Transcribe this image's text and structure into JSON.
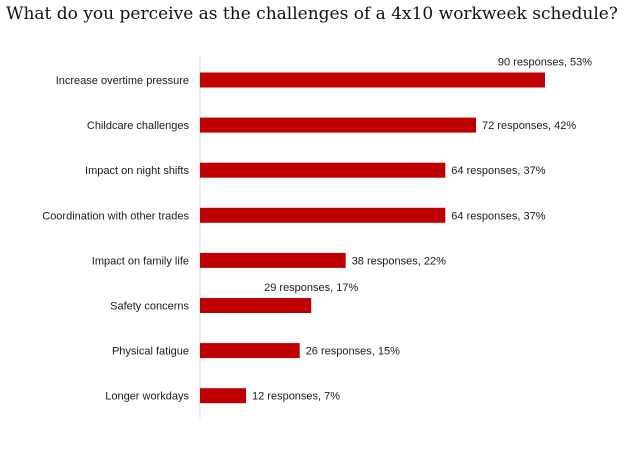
{
  "chart_data": {
    "type": "bar",
    "orientation": "horizontal",
    "title": "What do you perceive as the challenges of a 4x10 workweek schedule?",
    "categories": [
      "Increase overtime pressure",
      "Childcare challenges",
      "Impact on night shifts",
      "Coordination with other trades",
      "Impact on family life",
      "Safety concerns",
      "Physical fatigue",
      "Longer workdays"
    ],
    "values": [
      90,
      72,
      64,
      64,
      38,
      29,
      26,
      12
    ],
    "percents": [
      53,
      42,
      37,
      37,
      22,
      17,
      15,
      7
    ],
    "data_labels": [
      "90 responses, 53%",
      "72 responses, 42%",
      "64 responses, 37%",
      "64 responses, 37%",
      "38 responses, 22%",
      "29 responses, 17%",
      "26 responses, 15%",
      "12 responses, 7%"
    ],
    "label_above": [
      true,
      false,
      false,
      false,
      false,
      true,
      false,
      false
    ],
    "xlim": [
      0,
      90
    ],
    "bar_color": "#c00000",
    "axis_color": "#d9d9d9",
    "grid": false,
    "legend": "none"
  }
}
